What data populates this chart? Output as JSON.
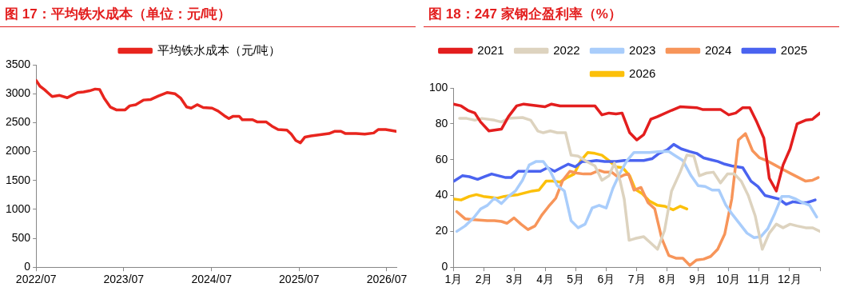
{
  "chart_data": [
    {
      "type": "line",
      "title": "图 17：平均铁水成本（单位：元/吨）",
      "legend": "top",
      "grid": false,
      "xlim": [
        "2022-07-01",
        "2026-08-10"
      ],
      "xticks": [
        {
          "value": "2022-07",
          "label": "2022/07"
        },
        {
          "value": "2023-07",
          "label": "2023/07"
        },
        {
          "value": "2024-07",
          "label": "2024/07"
        },
        {
          "value": "2025-07",
          "label": "2025/07"
        },
        {
          "value": "2026-07",
          "label": "2026/07"
        }
      ],
      "ylim": [
        0,
        3500
      ],
      "yticks": [
        0,
        500,
        1000,
        1500,
        2000,
        2500,
        3000,
        3500
      ],
      "series": [
        {
          "name": "平均铁水成本（元/吨）",
          "color": "#e8251e",
          "x": [
            "2022-07-01",
            "2022-07-17",
            "2022-08-05",
            "2022-08-21",
            "2022-09-06",
            "2022-10-07",
            "2022-11-08",
            "2022-11-26",
            "2022-12-21",
            "2023-01-15",
            "2023-02-09",
            "2023-03-04",
            "2023-03-23",
            "2023-04-11",
            "2023-05-06",
            "2023-05-31",
            "2023-07-07",
            "2023-07-26",
            "2023-08-20",
            "2023-09-21",
            "2023-10-22",
            "2023-11-22",
            "2023-12-30",
            "2024-01-30",
            "2024-02-24",
            "2024-03-19",
            "2024-04-07",
            "2024-05-02",
            "2024-05-27",
            "2024-07-03",
            "2024-07-28",
            "2024-08-23",
            "2024-09-11",
            "2024-09-29",
            "2024-10-24",
            "2024-11-06",
            "2024-12-19",
            "2025-01-08",
            "2025-02-14",
            "2025-03-09",
            "2025-04-04",
            "2025-05-11",
            "2025-05-29",
            "2025-06-17",
            "2025-07-06",
            "2025-07-25",
            "2025-08-19",
            "2025-09-26",
            "2025-11-02",
            "2025-11-27",
            "2025-12-22",
            "2026-01-10",
            "2026-02-23",
            "2026-03-31",
            "2026-05-07",
            "2026-05-26",
            "2026-06-26",
            "2026-08-09"
          ],
          "values": [
            3230,
            3130,
            3070,
            3010,
            2950,
            2970,
            2930,
            2970,
            3020,
            3030,
            3050,
            3080,
            3070,
            2920,
            2770,
            2720,
            2720,
            2790,
            2810,
            2890,
            2900,
            2960,
            3020,
            3000,
            2920,
            2770,
            2750,
            2810,
            2760,
            2750,
            2700,
            2620,
            2570,
            2610,
            2610,
            2550,
            2550,
            2510,
            2510,
            2440,
            2380,
            2370,
            2300,
            2190,
            2150,
            2250,
            2270,
            2290,
            2310,
            2350,
            2350,
            2310,
            2310,
            2300,
            2320,
            2380,
            2380,
            2350
          ]
        }
      ]
    },
    {
      "type": "line",
      "title": "图 18：247 家钢企盈利率（%）",
      "legend": "top",
      "grid": false,
      "xlim": [
        1,
        13
      ],
      "xticks": [
        {
          "value": 1,
          "label": "1月"
        },
        {
          "value": 2,
          "label": "2月"
        },
        {
          "value": 3,
          "label": "3月"
        },
        {
          "value": 4,
          "label": "4月"
        },
        {
          "value": 5,
          "label": "5月"
        },
        {
          "value": 6,
          "label": "6月"
        },
        {
          "value": 7,
          "label": "7月"
        },
        {
          "value": 8,
          "label": "8月"
        },
        {
          "value": 9,
          "label": "9月"
        },
        {
          "value": 10,
          "label": "10月"
        },
        {
          "value": 11,
          "label": "11月"
        },
        {
          "value": 12,
          "label": "12月"
        },
        {
          "value": 13,
          "label": null
        }
      ],
      "ylim": [
        0,
        100
      ],
      "yticks": [
        0,
        20,
        40,
        60,
        80,
        100
      ],
      "series": [
        {
          "name": "2021",
          "color": "#e31e1e",
          "x": [
            1.0,
            1.25,
            1.47,
            1.7,
            1.89,
            2.16,
            2.57,
            2.8,
            3.07,
            3.3,
            3.99,
            4.21,
            4.49,
            5.63,
            5.86,
            6.09,
            6.32,
            6.52,
            6.77,
            7.0,
            7.23,
            7.46,
            7.68,
            8.14,
            8.42,
            8.96,
            9.15,
            9.74,
            10.01,
            10.24,
            10.47,
            10.7,
            10.93,
            11.16,
            11.34,
            11.57,
            11.79,
            12.02,
            12.25,
            12.53,
            12.75,
            13.0
          ],
          "values": [
            91,
            90,
            87.5,
            86,
            81,
            76,
            77,
            84,
            90,
            91,
            89.5,
            91,
            90,
            90,
            85,
            86,
            85.5,
            86,
            75,
            71,
            74,
            82.5,
            84,
            87.5,
            89.5,
            89,
            88,
            88,
            85,
            86,
            89,
            89,
            81,
            72,
            49.5,
            42.5,
            57,
            66,
            80,
            82,
            82.5,
            86
          ]
        },
        {
          "name": "2022",
          "color": "#ddd3bf",
          "x": [
            1.2,
            1.43,
            1.7,
            1.93,
            2.34,
            2.57,
            2.8,
            3.26,
            3.53,
            3.76,
            3.94,
            4.17,
            4.4,
            4.67,
            4.85,
            5.08,
            5.36,
            5.63,
            5.86,
            6.09,
            6.27,
            6.45,
            6.59,
            6.75,
            6.95,
            7.23,
            7.46,
            7.68,
            7.91,
            8.14,
            8.42,
            8.64,
            8.87,
            9.05,
            9.28,
            9.51,
            9.74,
            9.97,
            10.2,
            10.42,
            10.65,
            10.88,
            11.11,
            11.34,
            11.57,
            11.79,
            12.02,
            12.25,
            12.53,
            12.75,
            13.0
          ],
          "values": [
            83,
            83,
            82,
            83,
            82,
            81,
            83,
            83.5,
            82,
            76,
            75,
            76,
            75,
            75,
            62.5,
            62,
            59,
            56.5,
            48.5,
            51,
            58,
            48.5,
            38,
            15,
            16,
            17,
            13.5,
            10,
            20.5,
            42.5,
            53,
            62.5,
            62,
            51,
            52.5,
            53,
            47,
            52,
            52,
            48,
            40,
            28.5,
            10,
            19,
            24,
            22,
            24,
            23,
            22,
            22,
            20
          ]
        },
        {
          "name": "2023",
          "color": "#a9cdfb",
          "x": [
            1.11,
            1.38,
            1.66,
            1.89,
            2.11,
            2.34,
            2.57,
            2.8,
            3.03,
            3.26,
            3.48,
            3.71,
            3.94,
            4.17,
            4.4,
            4.63,
            4.85,
            5.08,
            5.31,
            5.54,
            5.77,
            6.0,
            6.22,
            6.45,
            6.68,
            6.91,
            7.14,
            7.41,
            7.78,
            8.05,
            8.28,
            8.51,
            8.78,
            9.01,
            9.24,
            9.47,
            9.69,
            9.92,
            10.15,
            10.38,
            10.61,
            10.84,
            11.06,
            11.29,
            11.52,
            11.75,
            11.98,
            12.21,
            12.43,
            12.66,
            12.89
          ],
          "values": [
            20,
            23,
            27.5,
            32.5,
            34.5,
            38.5,
            35.5,
            39.5,
            42.5,
            48.5,
            57,
            59,
            59,
            53.5,
            45.5,
            42.5,
            26,
            22,
            24,
            33,
            34.5,
            33,
            44,
            52.5,
            59.5,
            64,
            64,
            64,
            64.5,
            64.5,
            62,
            59.5,
            51,
            45.5,
            45,
            43,
            43,
            34.5,
            29,
            24,
            19,
            16.5,
            17,
            21.5,
            30,
            39.5,
            39.5,
            38,
            36,
            34.5,
            28
          ]
        },
        {
          "name": "2024",
          "color": "#f7955a",
          "x": [
            1.11,
            1.38,
            1.66,
            2.11,
            2.34,
            2.57,
            2.75,
            2.98,
            3.21,
            3.44,
            3.67,
            3.89,
            4.12,
            4.35,
            4.58,
            4.81,
            5.04,
            5.26,
            5.49,
            5.77,
            5.95,
            6.18,
            6.41,
            6.59,
            6.73,
            6.91,
            7.14,
            7.37,
            7.59,
            7.82,
            8.05,
            8.28,
            8.51,
            8.74,
            8.96,
            9.19,
            9.42,
            9.65,
            9.88,
            10.11,
            10.33,
            10.56,
            10.79,
            11.02,
            11.25,
            11.52,
            11.79,
            12.07,
            12.3,
            12.53,
            12.75,
            12.94
          ],
          "values": [
            31,
            27,
            26.5,
            26,
            26,
            25.5,
            24.5,
            27.5,
            24,
            21,
            23,
            29,
            34,
            38.5,
            48.5,
            53.5,
            52.5,
            52,
            52,
            54,
            53,
            53,
            50,
            51.5,
            52,
            43,
            44.5,
            36,
            32.5,
            16,
            6.5,
            5,
            5,
            1,
            4,
            4.5,
            6,
            10,
            18.5,
            38,
            71,
            74.5,
            65,
            61,
            59.5,
            57,
            54.5,
            52,
            50,
            48,
            48.5,
            50
          ]
        },
        {
          "name": "2025",
          "color": "#4a63f0",
          "x": [
            1.02,
            1.29,
            1.52,
            1.79,
            2.02,
            2.25,
            2.48,
            2.71,
            2.89,
            3.12,
            3.35,
            3.58,
            3.85,
            4.08,
            4.31,
            4.53,
            4.76,
            4.99,
            5.22,
            5.45,
            5.68,
            5.95,
            6.32,
            6.59,
            6.95,
            7.23,
            7.5,
            7.73,
            8.0,
            8.21,
            8.46,
            8.74,
            8.96,
            9.19,
            9.42,
            9.65,
            9.88,
            10.11,
            10.47,
            10.74,
            10.97,
            11.2,
            11.43,
            11.66,
            11.89,
            12.11,
            12.34,
            12.57,
            12.84
          ],
          "values": [
            48,
            51,
            50.5,
            49,
            50.5,
            52,
            51,
            50,
            50,
            53.5,
            53.5,
            53.5,
            53.5,
            55.5,
            53.5,
            55.5,
            57.5,
            56,
            59,
            59,
            59.5,
            59,
            59,
            59.5,
            59.5,
            59.5,
            60.5,
            63.5,
            65.5,
            68.5,
            66,
            64.5,
            63.5,
            61,
            60,
            59,
            57.5,
            56.5,
            55.5,
            48,
            45,
            40,
            39,
            38,
            35,
            36.5,
            36,
            36,
            37.5
          ]
        },
        {
          "name": "2026",
          "color": "#fcc00a",
          "x": [
            1.02,
            1.25,
            1.52,
            1.75,
            1.98,
            2.21,
            2.43,
            2.66,
            2.89,
            3.12,
            3.35,
            3.58,
            3.8,
            4.03,
            4.26,
            4.49,
            4.72,
            4.95,
            5.17,
            5.4,
            5.63,
            5.86,
            6.09,
            6.32,
            6.54,
            6.77,
            6.95,
            7.18,
            7.41,
            7.68,
            7.91,
            8.19,
            8.42,
            8.64
          ],
          "values": [
            38,
            37.5,
            39.5,
            40.5,
            39.5,
            39,
            38.5,
            39.5,
            40,
            40.5,
            41.5,
            42.5,
            43,
            48,
            48,
            47.5,
            50,
            52,
            59.5,
            64,
            63.5,
            62.5,
            59.5,
            56,
            55.5,
            51,
            43.5,
            41,
            37,
            34.5,
            34,
            32,
            34,
            32.5
          ]
        }
      ]
    }
  ]
}
